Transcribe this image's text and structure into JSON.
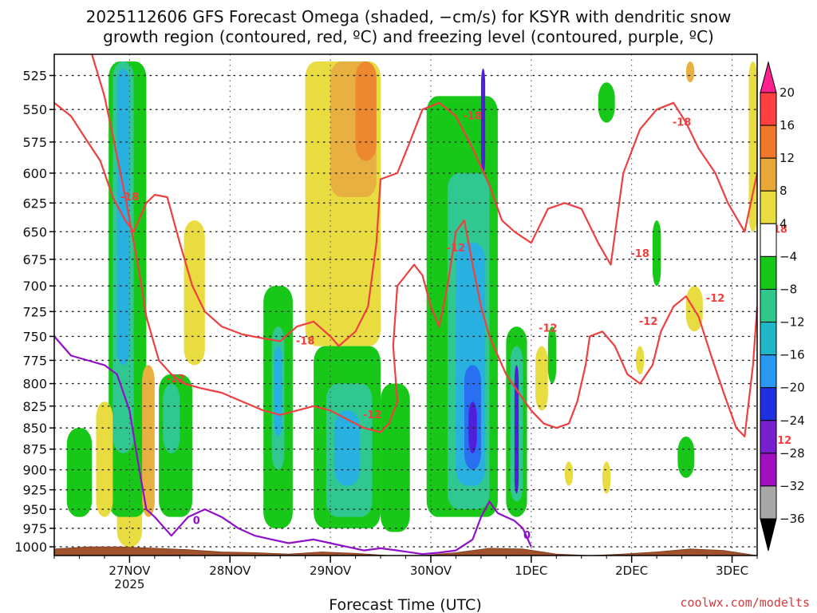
{
  "chart_data": {
    "type": "heatmap",
    "title_line1": "2025112606 GFS Forecast Omega (shaded, −cm/s) for KSYR with dendritic snow",
    "title_line2": "growth region (contoured, red, ºC) and freezing level (contoured, purple, ºC)",
    "xlabel": "Forecast Time (UTC)",
    "credit": "coolwx.com/modelts",
    "ylabel": "",
    "y_axis": {
      "levels": [
        525,
        550,
        575,
        600,
        625,
        650,
        675,
        700,
        725,
        750,
        775,
        800,
        825,
        850,
        875,
        900,
        925,
        950,
        975,
        1000
      ],
      "ylim": [
        510,
        1012
      ],
      "scale": "log",
      "grid": true
    },
    "x_axis": {
      "xlim_hours_from_init": [
        0,
        168
      ],
      "ticks": [
        {
          "label": "27NOV",
          "sub": "2025",
          "hour": 18
        },
        {
          "label": "28NOV",
          "sub": "",
          "hour": 42
        },
        {
          "label": "29NOV",
          "sub": "",
          "hour": 66
        },
        {
          "label": "30NOV",
          "sub": "",
          "hour": 90
        },
        {
          "label": "1DEC",
          "sub": "",
          "hour": 114
        },
        {
          "label": "2DEC",
          "sub": "",
          "hour": 138
        },
        {
          "label": "3DEC",
          "sub": "",
          "hour": 162
        }
      ],
      "grid": true
    },
    "colorbar": {
      "labels": [
        "20",
        "16",
        "12",
        "8",
        "4",
        "−4",
        "−8",
        "−12",
        "−16",
        "−20",
        "−24",
        "−28",
        "−32",
        "−36"
      ],
      "colors": [
        "#ff2090",
        "#ff4040",
        "#f07828",
        "#e8a838",
        "#e8dc40",
        "#ffffff",
        "#18c818",
        "#30c88a",
        "#20b8c8",
        "#2898f0",
        "#2030e0",
        "#7820d0",
        "#a010c0",
        "#a8a8a8",
        "#000000"
      ]
    },
    "omega_regions": [
      {
        "band": "4",
        "t0": 15,
        "t1": 21,
        "p0": 515,
        "p1": 1000
      },
      {
        "band": "-8",
        "t0": 13,
        "t1": 22,
        "p0": 515,
        "p1": 960
      },
      {
        "band": "-12",
        "t0": 14,
        "t1": 19,
        "p0": 515,
        "p1": 880
      },
      {
        "band": "-16",
        "t0": 15,
        "t1": 18,
        "p0": 520,
        "p1": 780
      },
      {
        "band": "8",
        "t0": 21,
        "t1": 24,
        "p0": 780,
        "p1": 960
      },
      {
        "band": "4",
        "t0": 10,
        "t1": 14,
        "p0": 820,
        "p1": 960
      },
      {
        "band": "-8",
        "t0": 3,
        "t1": 9,
        "p0": 850,
        "p1": 960
      },
      {
        "band": "-8",
        "t0": 25,
        "t1": 33,
        "p0": 790,
        "p1": 960
      },
      {
        "band": "-12",
        "t0": 26,
        "t1": 30,
        "p0": 800,
        "p1": 880
      },
      {
        "band": "4",
        "t0": 31,
        "t1": 36,
        "p0": 640,
        "p1": 780
      },
      {
        "band": "-8",
        "t0": 50,
        "t1": 57,
        "p0": 700,
        "p1": 975
      },
      {
        "band": "-12",
        "t0": 52,
        "t1": 55,
        "p0": 740,
        "p1": 900
      },
      {
        "band": "-16",
        "t0": 52.5,
        "t1": 54.5,
        "p0": 760,
        "p1": 860
      },
      {
        "band": "4",
        "t0": 60,
        "t1": 78,
        "p0": 515,
        "p1": 760
      },
      {
        "band": "8",
        "t0": 66,
        "t1": 77,
        "p0": 515,
        "p1": 620
      },
      {
        "band": "12",
        "t0": 72,
        "t1": 77,
        "p0": 515,
        "p1": 590
      },
      {
        "band": "-8",
        "t0": 62,
        "t1": 78,
        "p0": 760,
        "p1": 975
      },
      {
        "band": "-12",
        "t0": 65,
        "t1": 76,
        "p0": 800,
        "p1": 960
      },
      {
        "band": "-16",
        "t0": 67,
        "t1": 73,
        "p0": 830,
        "p1": 920
      },
      {
        "band": "-8",
        "t0": 78,
        "t1": 85,
        "p0": 800,
        "p1": 980
      },
      {
        "band": "-8",
        "t0": 89,
        "t1": 106,
        "p0": 540,
        "p1": 960
      },
      {
        "band": "-12",
        "t0": 94,
        "t1": 104,
        "p0": 600,
        "p1": 950
      },
      {
        "band": "-16",
        "t0": 96,
        "t1": 103,
        "p0": 660,
        "p1": 920
      },
      {
        "band": "-20",
        "t0": 98,
        "t1": 102,
        "p0": 780,
        "p1": 900
      },
      {
        "band": "-24",
        "t0": 99,
        "t1": 101,
        "p0": 820,
        "p1": 880
      },
      {
        "band": "-24",
        "t0": 102,
        "t1": 103,
        "p0": 520,
        "p1": 600
      },
      {
        "band": "-8",
        "t0": 108,
        "t1": 113,
        "p0": 740,
        "p1": 960
      },
      {
        "band": "-12",
        "t0": 109,
        "t1": 112,
        "p0": 760,
        "p1": 940
      },
      {
        "band": "-24",
        "t0": 110,
        "t1": 111,
        "p0": 780,
        "p1": 930
      },
      {
        "band": "4",
        "t0": 115,
        "t1": 118,
        "p0": 760,
        "p1": 830
      },
      {
        "band": "-8",
        "t0": 118,
        "t1": 120,
        "p0": 740,
        "p1": 800
      },
      {
        "band": "-8",
        "t0": 130,
        "t1": 134,
        "p0": 530,
        "p1": 560
      },
      {
        "band": "-8",
        "t0": 143,
        "t1": 145,
        "p0": 640,
        "p1": 700
      },
      {
        "band": "4",
        "t0": 139,
        "t1": 141,
        "p0": 760,
        "p1": 790
      },
      {
        "band": "4",
        "t0": 151,
        "t1": 155,
        "p0": 700,
        "p1": 745
      },
      {
        "band": "-8",
        "t0": 149,
        "t1": 153,
        "p0": 860,
        "p1": 910
      },
      {
        "band": "4",
        "t0": 166,
        "t1": 168,
        "p0": 515,
        "p1": 650
      },
      {
        "band": "8",
        "t0": 151,
        "t1": 153,
        "p0": 515,
        "p1": 530
      },
      {
        "band": "4",
        "t0": 122,
        "t1": 124,
        "p0": 890,
        "p1": 920
      },
      {
        "band": "4",
        "t0": 131,
        "t1": 133,
        "p0": 890,
        "p1": 930
      }
    ],
    "dgz_contours": [
      {
        "level": "-18",
        "points": [
          [
            0,
            545
          ],
          [
            4,
            555
          ],
          [
            8,
            575
          ],
          [
            11,
            590
          ],
          [
            14,
            620
          ],
          [
            17,
            640
          ],
          [
            19,
            650
          ],
          [
            22,
            625
          ],
          [
            24,
            618
          ],
          [
            27,
            620
          ],
          [
            30,
            660
          ],
          [
            33,
            700
          ],
          [
            36,
            725
          ],
          [
            40,
            740
          ],
          [
            45,
            748
          ],
          [
            50,
            752
          ],
          [
            54,
            755
          ],
          [
            58,
            740
          ],
          [
            62,
            735
          ],
          [
            66,
            750
          ],
          [
            68,
            760
          ],
          [
            72,
            745
          ],
          [
            75,
            720
          ],
          [
            77,
            660
          ],
          [
            78,
            605
          ],
          [
            82,
            600
          ],
          [
            85,
            575
          ],
          [
            88,
            550
          ],
          [
            92,
            545
          ],
          [
            96,
            555
          ],
          [
            100,
            580
          ],
          [
            104,
            610
          ],
          [
            107,
            640
          ],
          [
            110,
            650
          ],
          [
            114,
            660
          ],
          [
            118,
            630
          ],
          [
            122,
            625
          ],
          [
            126,
            630
          ],
          [
            130,
            660
          ],
          [
            133,
            680
          ],
          [
            136,
            600
          ],
          [
            140,
            565
          ],
          [
            144,
            550
          ],
          [
            148,
            545
          ],
          [
            151,
            560
          ],
          [
            154,
            580
          ],
          [
            158,
            600
          ],
          [
            161,
            625
          ],
          [
            165,
            650
          ],
          [
            168,
            600
          ]
        ]
      },
      {
        "level": "-12",
        "points": [
          [
            9,
            510
          ],
          [
            12,
            540
          ],
          [
            14,
            570
          ],
          [
            17,
            620
          ],
          [
            20,
            680
          ],
          [
            22,
            730
          ],
          [
            25,
            775
          ],
          [
            28,
            790
          ],
          [
            31,
            800
          ],
          [
            35,
            805
          ],
          [
            40,
            810
          ],
          [
            45,
            820
          ],
          [
            50,
            830
          ],
          [
            54,
            835
          ],
          [
            58,
            830
          ],
          [
            62,
            825
          ],
          [
            66,
            830
          ],
          [
            70,
            840
          ],
          [
            74,
            850
          ],
          [
            78,
            855
          ],
          [
            80,
            845
          ],
          [
            82,
            820
          ],
          [
            81,
            760
          ],
          [
            82,
            700
          ],
          [
            84,
            690
          ],
          [
            86,
            680
          ],
          [
            88,
            690
          ],
          [
            90,
            720
          ],
          [
            92,
            740
          ],
          [
            94,
            700
          ],
          [
            96,
            650
          ],
          [
            98,
            640
          ],
          [
            100,
            680
          ],
          [
            102,
            720
          ],
          [
            104,
            750
          ],
          [
            106,
            770
          ],
          [
            108,
            790
          ],
          [
            111,
            810
          ],
          [
            114,
            830
          ],
          [
            117,
            845
          ],
          [
            120,
            850
          ],
          [
            123,
            845
          ],
          [
            125,
            820
          ],
          [
            127,
            780
          ],
          [
            128,
            750
          ],
          [
            131,
            745
          ],
          [
            134,
            760
          ],
          [
            137,
            790
          ],
          [
            140,
            800
          ],
          [
            143,
            780
          ],
          [
            145,
            745
          ],
          [
            148,
            720
          ],
          [
            151,
            710
          ],
          [
            154,
            730
          ],
          [
            157,
            770
          ],
          [
            160,
            810
          ],
          [
            163,
            850
          ],
          [
            165,
            860
          ],
          [
            167,
            780
          ],
          [
            168,
            720
          ]
        ]
      }
    ],
    "freezing_contour": {
      "level": "0",
      "points": [
        [
          0,
          750
        ],
        [
          4,
          770
        ],
        [
          8,
          775
        ],
        [
          12,
          780
        ],
        [
          15,
          790
        ],
        [
          18,
          830
        ],
        [
          20,
          890
        ],
        [
          22,
          950
        ],
        [
          24,
          960
        ],
        [
          28,
          985
        ],
        [
          32,
          960
        ],
        [
          36,
          950
        ],
        [
          40,
          960
        ],
        [
          44,
          975
        ],
        [
          48,
          985
        ],
        [
          52,
          990
        ],
        [
          56,
          995
        ],
        [
          62,
          990
        ],
        [
          66,
          995
        ],
        [
          70,
          1000
        ],
        [
          74,
          1005
        ],
        [
          78,
          1002
        ],
        [
          82,
          1005
        ],
        [
          88,
          1010
        ],
        [
          92,
          1008
        ],
        [
          96,
          1005
        ],
        [
          100,
          990
        ],
        [
          102,
          960
        ],
        [
          104,
          940
        ],
        [
          106,
          955
        ],
        [
          108,
          960
        ],
        [
          110,
          965
        ],
        [
          112,
          975
        ],
        [
          114,
          1000
        ]
      ]
    },
    "contour_labels": [
      {
        "text": "-18",
        "color": "red",
        "t": 18,
        "p": 620
      },
      {
        "text": "-18",
        "color": "red",
        "t": 60,
        "p": 755
      },
      {
        "text": "-18",
        "color": "red",
        "t": 100,
        "p": 555
      },
      {
        "text": "-18",
        "color": "red",
        "t": 140,
        "p": 670
      },
      {
        "text": "-18",
        "color": "red",
        "t": 150,
        "p": 560
      },
      {
        "text": "-18",
        "color": "red",
        "t": 173,
        "p": 648
      },
      {
        "text": "-12",
        "color": "red",
        "t": 29,
        "p": 795
      },
      {
        "text": "-12",
        "color": "red",
        "t": 76,
        "p": 835
      },
      {
        "text": "-12",
        "color": "red",
        "t": 96,
        "p": 665
      },
      {
        "text": "-12",
        "color": "red",
        "t": 118,
        "p": 742
      },
      {
        "text": "-12",
        "color": "red",
        "t": 142,
        "p": 735
      },
      {
        "text": "-12",
        "color": "red",
        "t": 158,
        "p": 712
      },
      {
        "text": "-12",
        "color": "red",
        "t": 174,
        "p": 865
      },
      {
        "text": "0",
        "color": "purple",
        "t": 34,
        "p": 965
      },
      {
        "text": "0",
        "color": "purple",
        "t": 113,
        "p": 985
      }
    ],
    "terrain_color": "#a0522d",
    "dgz_color": "#ee4040",
    "freezing_color": "#9010c8"
  }
}
